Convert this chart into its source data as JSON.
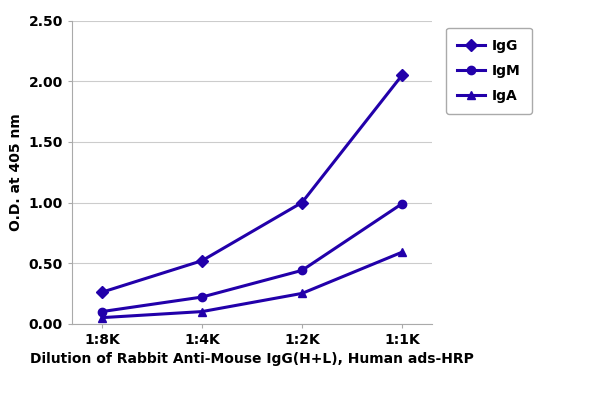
{
  "x_labels": [
    "1:8K",
    "1:4K",
    "1:2K",
    "1:1K"
  ],
  "x_values": [
    0,
    1,
    2,
    3
  ],
  "series": [
    {
      "name": "IgG",
      "values": [
        0.26,
        0.52,
        1.0,
        2.05
      ],
      "color": "#2200AA",
      "marker": "D",
      "markersize": 6,
      "linewidth": 2.2
    },
    {
      "name": "IgM",
      "values": [
        0.1,
        0.22,
        0.44,
        0.99
      ],
      "color": "#2200AA",
      "marker": "o",
      "markersize": 6,
      "linewidth": 2.2
    },
    {
      "name": "IgA",
      "values": [
        0.05,
        0.1,
        0.25,
        0.59
      ],
      "color": "#2200AA",
      "marker": "^",
      "markersize": 6,
      "linewidth": 2.2
    }
  ],
  "ylabel": "O.D. at 405 nm",
  "xlabel": "Dilution of Rabbit Anti-Mouse IgG(H+L), Human ads-HRP",
  "ylim": [
    0.0,
    2.5
  ],
  "yticks": [
    0.0,
    0.5,
    1.0,
    1.5,
    2.0,
    2.5
  ],
  "background_color": "#ffffff",
  "grid_color": "#cccccc",
  "label_fontsize": 10,
  "tick_fontsize": 10,
  "legend_fontsize": 10
}
